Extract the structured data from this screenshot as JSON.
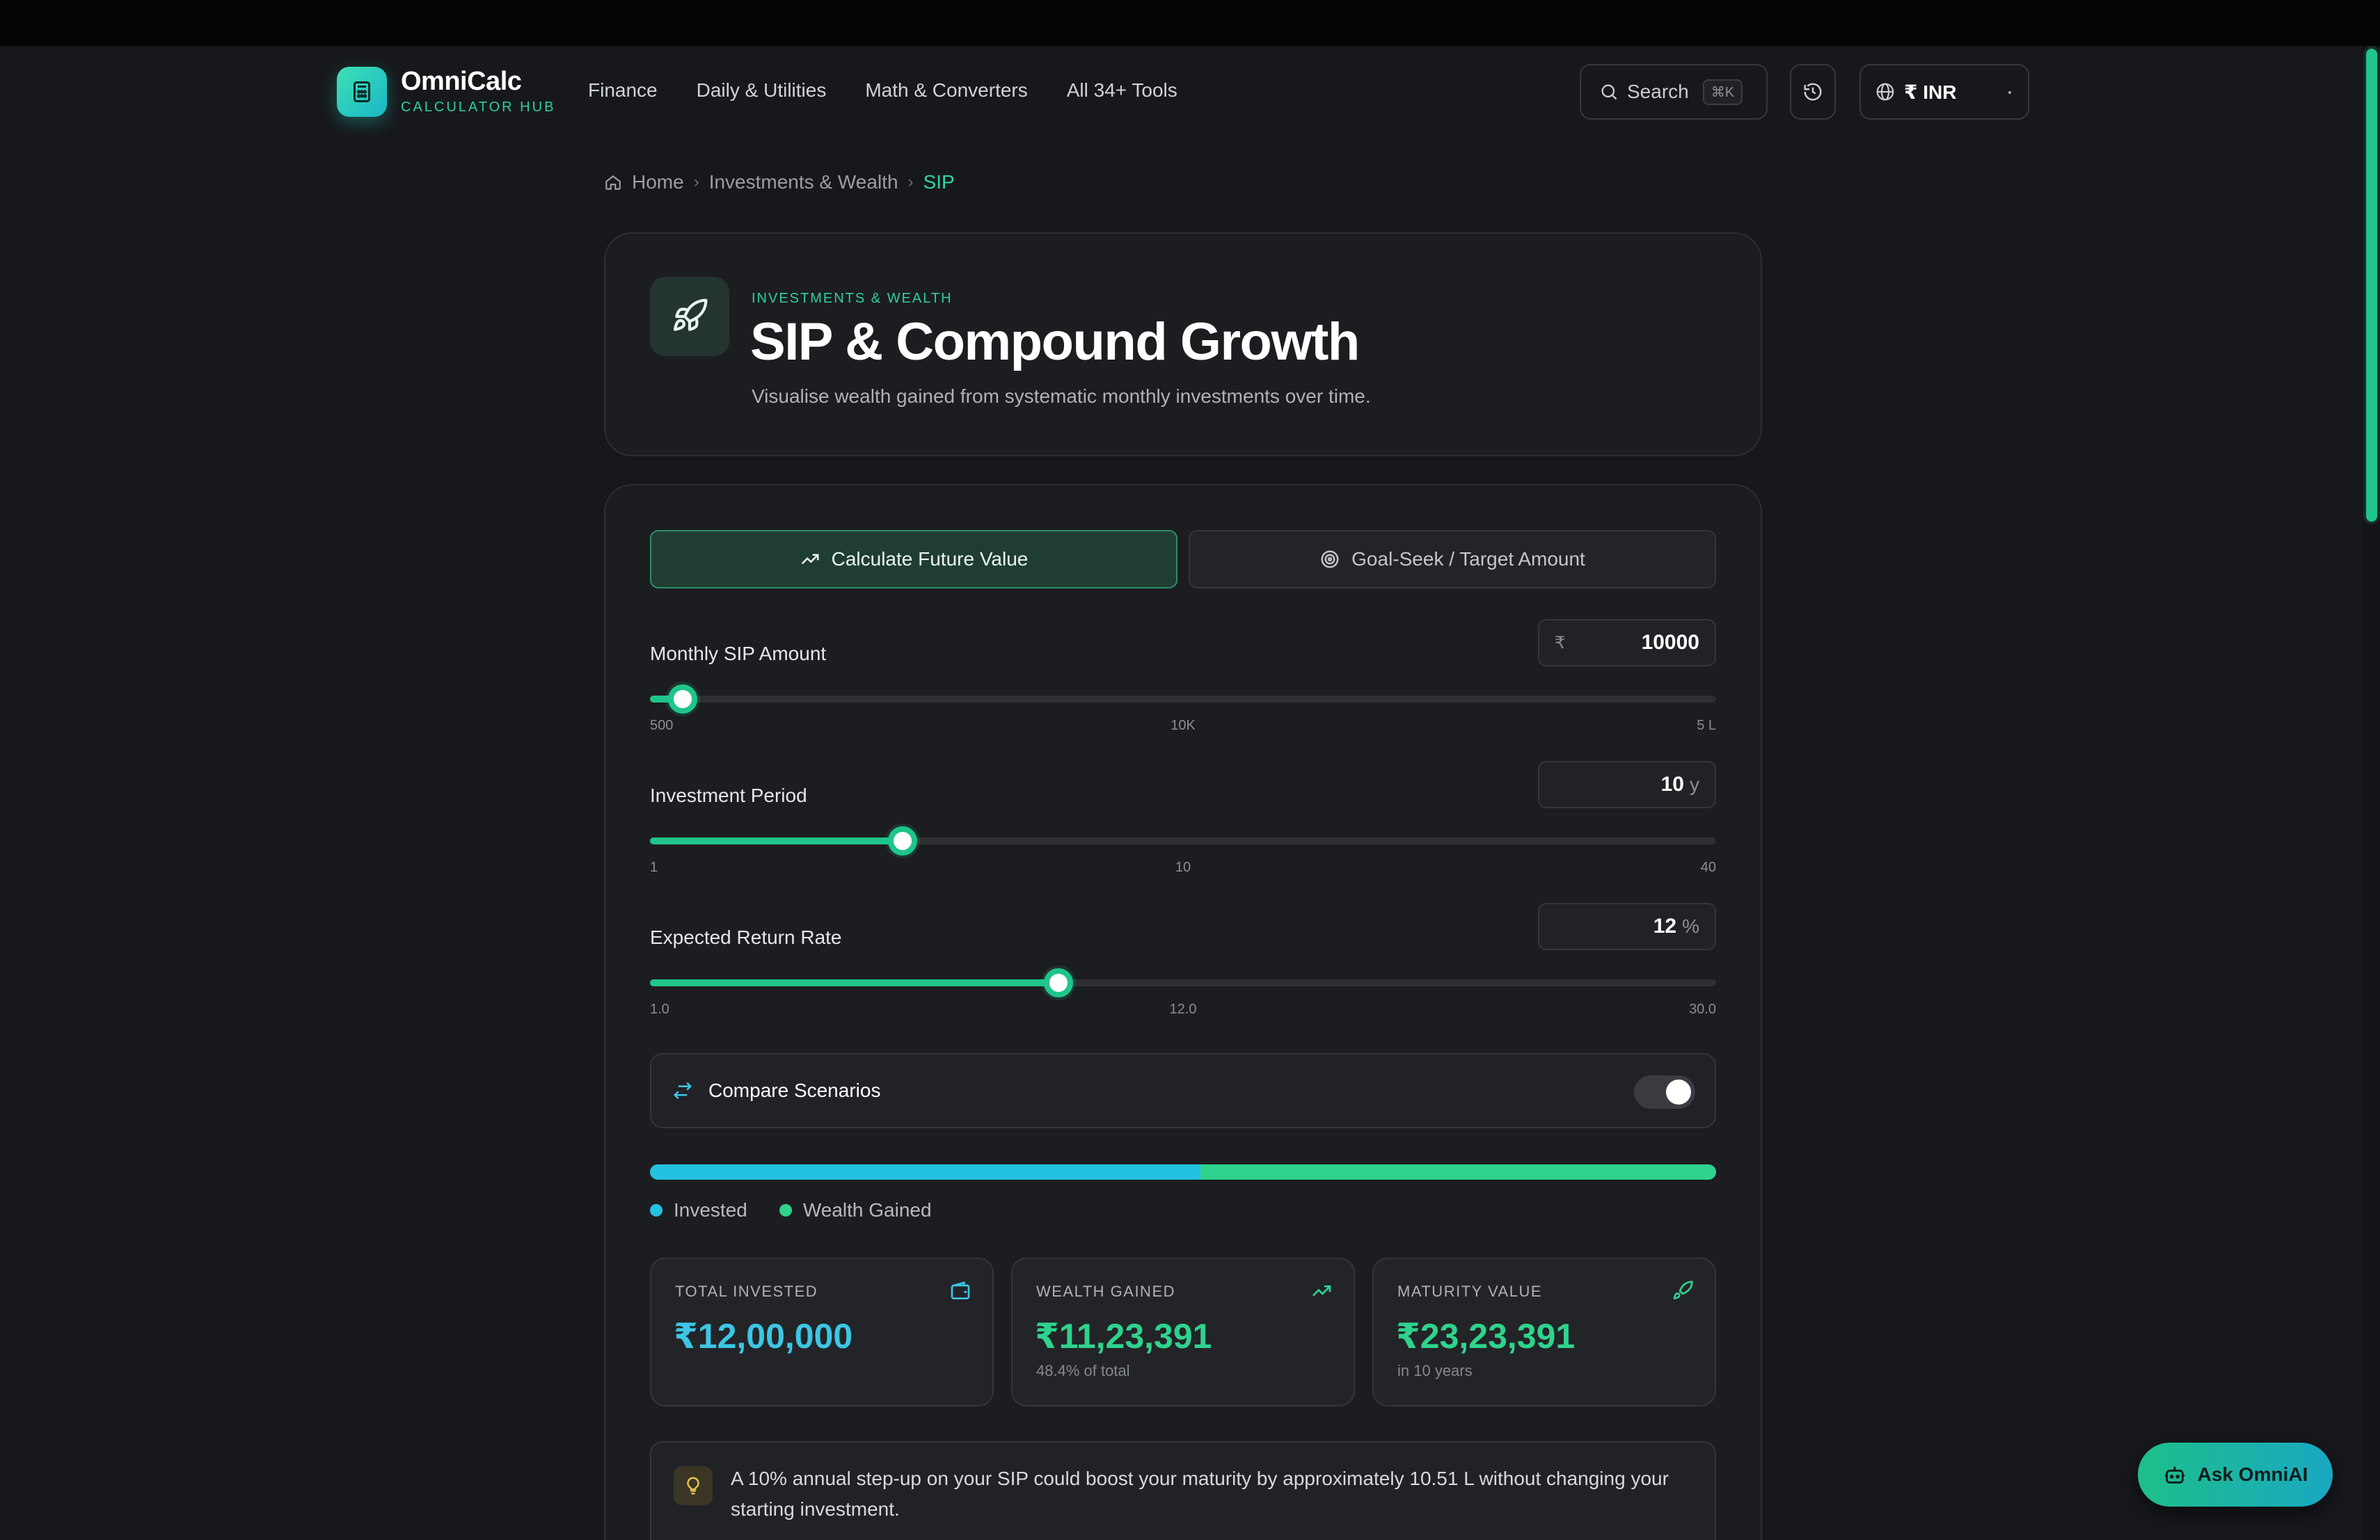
{
  "brand": {
    "name": "OmniCalc",
    "tagline": "CALCULATOR HUB"
  },
  "nav": [
    "Finance",
    "Daily & Utilities",
    "Math & Converters",
    "All 34+ Tools"
  ],
  "search": {
    "label": "Search",
    "shortcut": "⌘K"
  },
  "currency": {
    "label": "₹ INR"
  },
  "breadcrumb": {
    "home": "Home",
    "section": "Investments & Wealth",
    "current": "SIP"
  },
  "hero": {
    "category": "INVESTMENTS & WEALTH",
    "title": "SIP & Compound Growth",
    "description": "Visualise wealth gained from systematic monthly investments over time."
  },
  "tabs": {
    "active": "Calculate Future Value",
    "inactive": "Goal-Seek / Target Amount"
  },
  "fields": {
    "sip": {
      "label": "Monthly SIP Amount",
      "prefix": "₹",
      "value": "10000",
      "unit": "",
      "ticks": [
        "500",
        "10K",
        "5 L"
      ],
      "position": 0.031
    },
    "period": {
      "label": "Investment Period",
      "value": "10",
      "unit": "y",
      "ticks": [
        "1",
        "10",
        "40"
      ],
      "position": 0.237
    },
    "rate": {
      "label": "Expected Return Rate",
      "value": "12",
      "unit": "%",
      "ticks": [
        "1.0",
        "12.0",
        "30.0"
      ],
      "position": 0.383
    }
  },
  "compare": {
    "label": "Compare Scenarios",
    "enabled": true
  },
  "split": {
    "invested_fraction": 0.516
  },
  "legend": {
    "invested": "Invested",
    "gained": "Wealth Gained"
  },
  "colors": {
    "invested": "#23c2e0",
    "gained": "#2fd38d",
    "accent": "#1fc58a"
  },
  "stats": {
    "invested": {
      "label": "TOTAL INVESTED",
      "value": "₹12,00,000",
      "note": ""
    },
    "gained": {
      "label": "WEALTH GAINED",
      "value": "₹11,23,391",
      "note": "48.4% of total"
    },
    "maturity": {
      "label": "MATURITY VALUE",
      "value": "₹23,23,391",
      "note": "in 10 years"
    }
  },
  "tip": {
    "text": "A 10% annual step-up on your SIP could boost your maturity by approximately 10.51 L without changing your starting investment."
  },
  "ask": {
    "label": "Ask OmniAI"
  }
}
